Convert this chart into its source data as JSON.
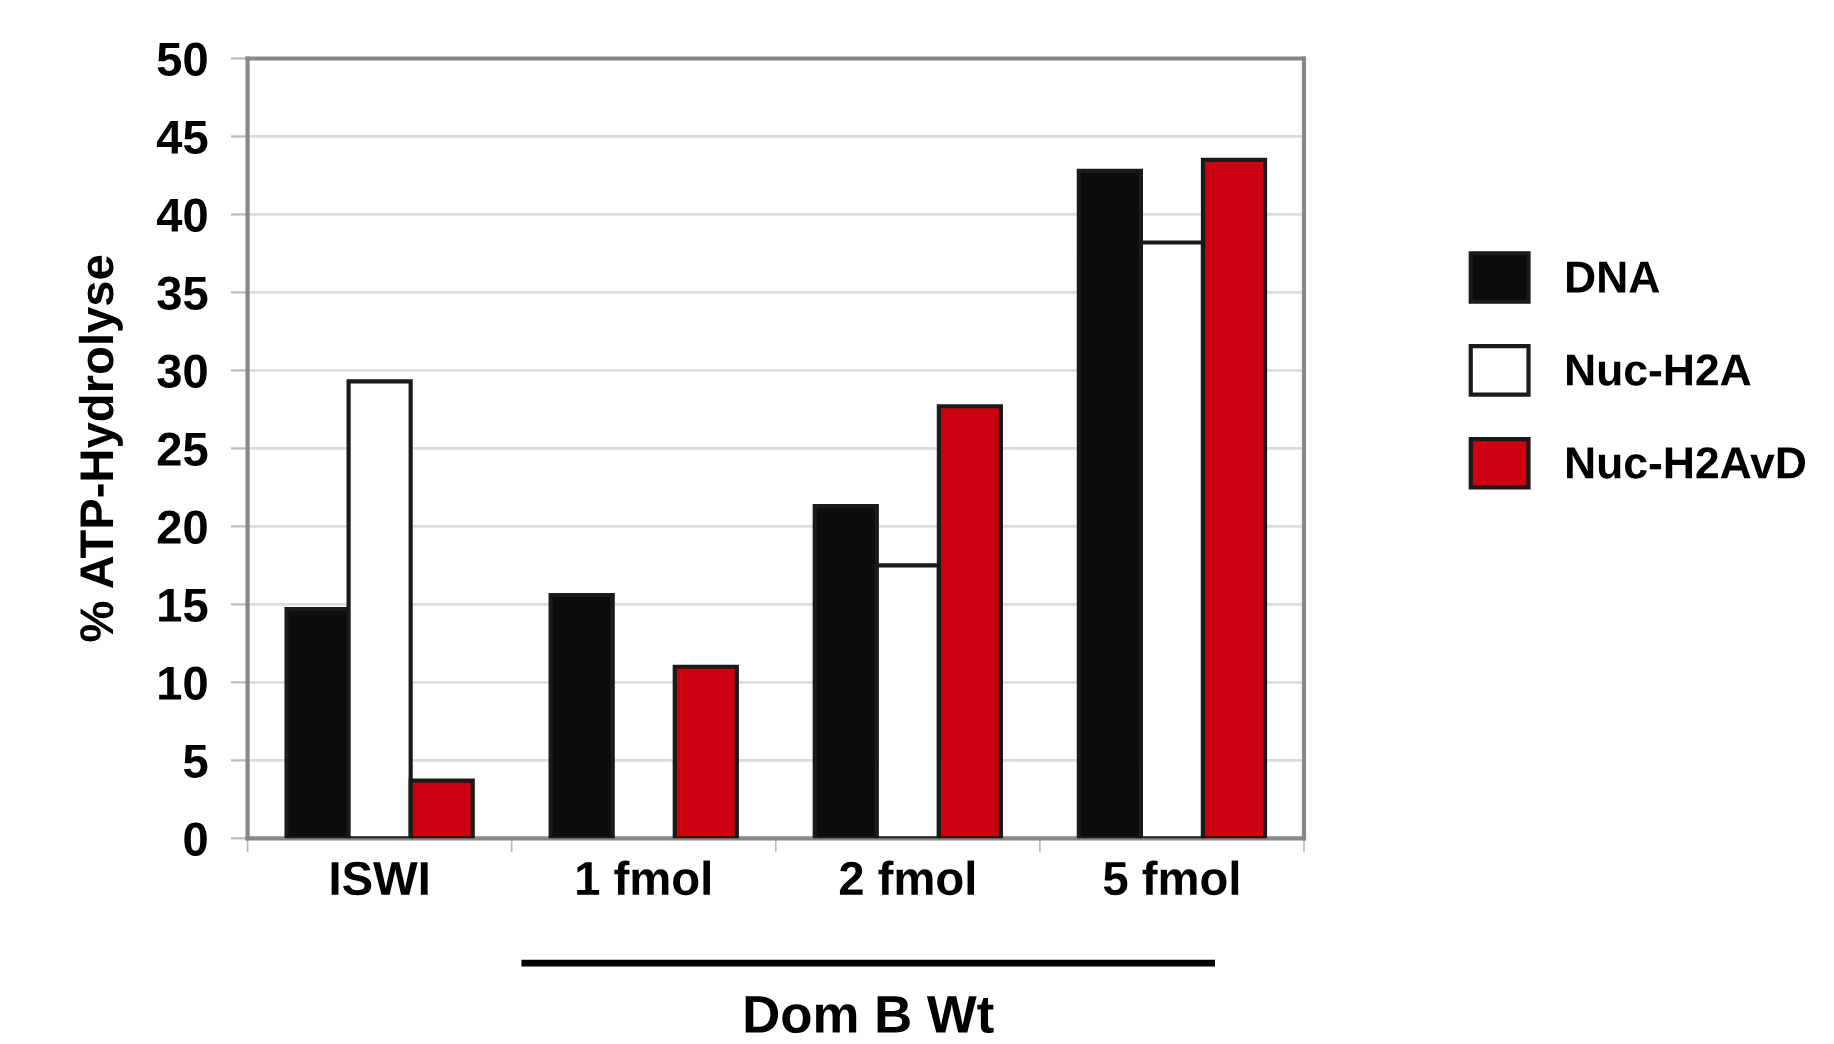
{
  "chart_data": {
    "type": "bar",
    "ylabel": "% ATP-Hydrolyse",
    "categories": [
      "ISWI",
      "1 fmol",
      "2 fmol",
      "5 fmol"
    ],
    "series": [
      {
        "name": "DNA",
        "color": "#0d0d0d",
        "values": [
          14.7,
          15.6,
          21.3,
          42.8
        ]
      },
      {
        "name": "Nuc-H2A",
        "color": "#ffffff",
        "values": [
          29.3,
          0,
          17.5,
          38.2
        ]
      },
      {
        "name": "Nuc-H2AvD",
        "color": "#cc0010",
        "values": [
          3.7,
          11.0,
          27.7,
          43.5
        ]
      }
    ],
    "ylim": [
      0,
      50
    ],
    "yticks": [
      0,
      5,
      10,
      15,
      20,
      25,
      30,
      35,
      40,
      45,
      50
    ],
    "grid": "y",
    "legend": "right",
    "annotations": [
      "Dom B Wt"
    ]
  }
}
